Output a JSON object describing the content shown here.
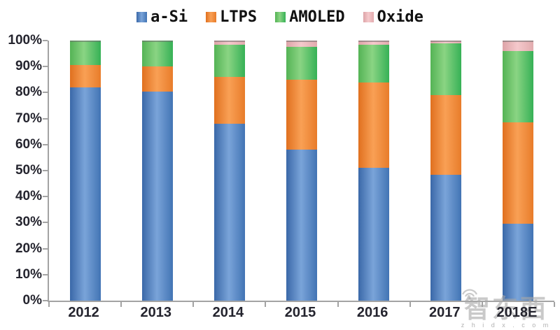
{
  "chart_data": {
    "type": "bar",
    "stacked": true,
    "percent_stacked": true,
    "title": "",
    "xlabel": "",
    "ylabel": "",
    "ylim": [
      0,
      100
    ],
    "grid": false,
    "legend_position": "top",
    "categories": [
      "2012",
      "2013",
      "2014",
      "2015",
      "2016",
      "2017",
      "2018E"
    ],
    "series": [
      {
        "name": "a-Si",
        "color": "#4a7ebb",
        "values": [
          82,
          80.5,
          68,
          58,
          51,
          48.5,
          29.5
        ]
      },
      {
        "name": "LTPS",
        "color": "#ed7d31",
        "values": [
          8.5,
          9.5,
          18,
          27,
          33,
          30.5,
          39
        ]
      },
      {
        "name": "AMOLED",
        "color": "#5cb85c",
        "values": [
          9.5,
          10,
          12.5,
          12.5,
          14.5,
          20,
          27.5
        ]
      },
      {
        "name": "Oxide",
        "color": "#eec3c6",
        "values": [
          0,
          0,
          1.5,
          2.5,
          1.5,
          1,
          4
        ]
      }
    ],
    "y_ticks": [
      "0%",
      "10%",
      "20%",
      "30%",
      "40%",
      "50%",
      "60%",
      "70%",
      "80%",
      "90%",
      "100%"
    ],
    "axis_color": "#a3a3a3",
    "bar_top_edge_color": "rgba(110,110,110,0.55)"
  },
  "watermark": {
    "text": "智东西",
    "subtext": "z h i d x . c o m"
  }
}
